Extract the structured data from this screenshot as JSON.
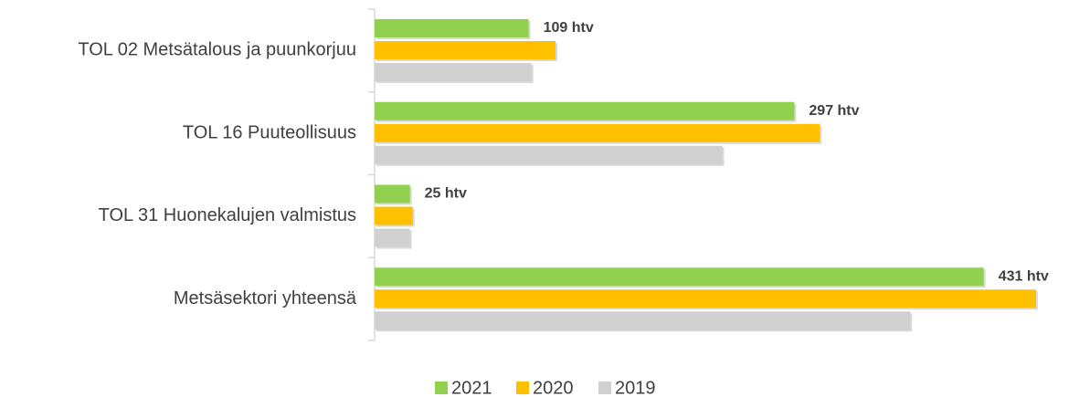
{
  "chart_data": {
    "type": "bar",
    "orientation": "horizontal",
    "categories": [
      "TOL 02 Metsätalous ja puunkorjuu",
      "TOL 16 Puuteollisuus",
      "TOL 31 Huonekalujen valmistus",
      "Metsäsektori yhteensä"
    ],
    "series": [
      {
        "name": "2021",
        "color": "#92d050",
        "values": [
          109,
          297,
          25,
          431
        ],
        "value_labels": [
          "109 htv",
          "297 htv",
          "25 htv",
          "431 htv"
        ]
      },
      {
        "name": "2020",
        "color": "#ffc000",
        "values": [
          128,
          315,
          27,
          468
        ]
      },
      {
        "name": "2019",
        "color": "#d0d0d0",
        "values": [
          111,
          246,
          25,
          379
        ]
      }
    ],
    "xlim": [
      0,
      470
    ],
    "legend": "bottom"
  }
}
